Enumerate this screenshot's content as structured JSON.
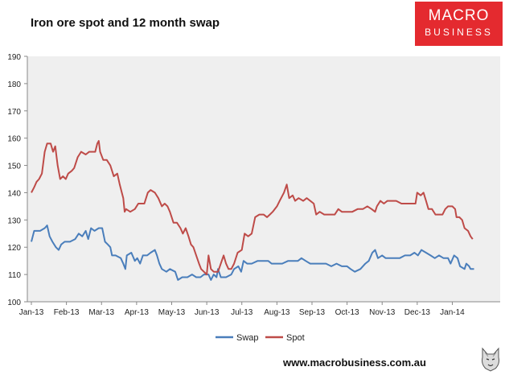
{
  "header": {
    "title": "Iron ore spot and 12 month swap",
    "logo_line1": "MACRO",
    "logo_line2": "BUSINESS"
  },
  "footer": {
    "url": "www.macrobusiness.com.au"
  },
  "colors": {
    "plot_background": "#efefef",
    "swap": "#4a7ebb",
    "spot": "#be4b48",
    "brand_red": "#e42a2f"
  },
  "icons": [
    "wolf-logo-icon"
  ],
  "chart_data": {
    "type": "line",
    "title": "Iron ore spot and 12 month swap",
    "xlabel": "",
    "ylabel": "",
    "ylim": [
      100,
      190
    ],
    "yticks": [
      100,
      110,
      120,
      130,
      140,
      150,
      160,
      170,
      180,
      190
    ],
    "xlim": [
      0,
      13.25
    ],
    "x_tick_positions": [
      0,
      1,
      2,
      3,
      4,
      5,
      6,
      7,
      8,
      9,
      10,
      11,
      12
    ],
    "x_tick_labels": [
      "Jan-13",
      "Feb-13",
      "Mar-13",
      "Apr-13",
      "May-13",
      "Jun-13",
      "Jul-13",
      "Aug-13",
      "Sep-13",
      "Oct-13",
      "Nov-13",
      "Dec-13",
      "Jan-14"
    ],
    "grid": false,
    "legend_position": "bottom",
    "series": [
      {
        "name": "Swap",
        "color": "#4a7ebb",
        "points": [
          [
            0.0,
            122
          ],
          [
            0.08,
            126
          ],
          [
            0.25,
            126
          ],
          [
            0.38,
            127
          ],
          [
            0.45,
            128
          ],
          [
            0.52,
            124
          ],
          [
            0.6,
            122
          ],
          [
            0.7,
            120
          ],
          [
            0.78,
            119
          ],
          [
            0.85,
            121
          ],
          [
            0.95,
            122
          ],
          [
            1.1,
            122
          ],
          [
            1.25,
            123
          ],
          [
            1.35,
            125
          ],
          [
            1.45,
            124
          ],
          [
            1.55,
            126
          ],
          [
            1.62,
            123
          ],
          [
            1.7,
            127
          ],
          [
            1.8,
            126
          ],
          [
            1.92,
            127
          ],
          [
            2.02,
            127
          ],
          [
            2.1,
            122
          ],
          [
            2.18,
            121
          ],
          [
            2.25,
            120
          ],
          [
            2.3,
            117
          ],
          [
            2.4,
            117
          ],
          [
            2.55,
            116
          ],
          [
            2.62,
            114
          ],
          [
            2.68,
            112
          ],
          [
            2.72,
            117
          ],
          [
            2.85,
            118
          ],
          [
            2.95,
            115
          ],
          [
            3.02,
            116
          ],
          [
            3.1,
            114
          ],
          [
            3.18,
            117
          ],
          [
            3.3,
            117
          ],
          [
            3.4,
            118
          ],
          [
            3.52,
            119
          ],
          [
            3.58,
            117
          ],
          [
            3.65,
            114
          ],
          [
            3.72,
            112
          ],
          [
            3.85,
            111
          ],
          [
            3.95,
            112
          ],
          [
            4.1,
            111
          ],
          [
            4.18,
            108
          ],
          [
            4.3,
            109
          ],
          [
            4.45,
            109
          ],
          [
            4.58,
            110
          ],
          [
            4.7,
            109
          ],
          [
            4.82,
            109
          ],
          [
            4.92,
            110
          ],
          [
            5.05,
            110
          ],
          [
            5.12,
            108
          ],
          [
            5.2,
            110
          ],
          [
            5.28,
            109
          ],
          [
            5.32,
            112
          ],
          [
            5.4,
            109
          ],
          [
            5.55,
            109
          ],
          [
            5.7,
            110
          ],
          [
            5.78,
            112
          ],
          [
            5.9,
            113
          ],
          [
            5.98,
            111
          ],
          [
            6.05,
            115
          ],
          [
            6.15,
            114
          ],
          [
            6.28,
            114
          ],
          [
            6.45,
            115
          ],
          [
            6.62,
            115
          ],
          [
            6.75,
            115
          ],
          [
            6.85,
            114
          ],
          [
            7.0,
            114
          ],
          [
            7.15,
            114
          ],
          [
            7.32,
            115
          ],
          [
            7.45,
            115
          ],
          [
            7.6,
            115
          ],
          [
            7.7,
            116
          ],
          [
            7.82,
            115
          ],
          [
            7.95,
            114
          ],
          [
            8.1,
            114
          ],
          [
            8.25,
            114
          ],
          [
            8.4,
            114
          ],
          [
            8.55,
            113
          ],
          [
            8.7,
            114
          ],
          [
            8.85,
            113
          ],
          [
            9.0,
            113
          ],
          [
            9.1,
            112
          ],
          [
            9.22,
            111
          ],
          [
            9.38,
            112
          ],
          [
            9.52,
            114
          ],
          [
            9.62,
            115
          ],
          [
            9.72,
            118
          ],
          [
            9.8,
            119
          ],
          [
            9.88,
            116
          ],
          [
            10.0,
            117
          ],
          [
            10.1,
            116
          ],
          [
            10.2,
            116
          ],
          [
            10.35,
            116
          ],
          [
            10.5,
            116
          ],
          [
            10.65,
            117
          ],
          [
            10.8,
            117
          ],
          [
            10.92,
            118
          ],
          [
            11.02,
            117
          ],
          [
            11.12,
            119
          ],
          [
            11.25,
            118
          ],
          [
            11.38,
            117
          ],
          [
            11.5,
            116
          ],
          [
            11.62,
            117
          ],
          [
            11.75,
            116
          ],
          [
            11.88,
            116
          ],
          [
            11.95,
            114
          ],
          [
            12.05,
            117
          ],
          [
            12.15,
            116
          ],
          [
            12.22,
            113
          ],
          [
            12.35,
            112
          ],
          [
            12.4,
            114
          ],
          [
            12.48,
            113
          ],
          [
            12.52,
            112
          ],
          [
            12.62,
            112
          ]
        ]
      },
      {
        "name": "Spot",
        "color": "#be4b48",
        "points": [
          [
            0.0,
            140
          ],
          [
            0.08,
            142
          ],
          [
            0.15,
            144
          ],
          [
            0.22,
            145
          ],
          [
            0.3,
            147
          ],
          [
            0.38,
            155
          ],
          [
            0.45,
            158
          ],
          [
            0.55,
            158
          ],
          [
            0.62,
            155
          ],
          [
            0.68,
            157
          ],
          [
            0.75,
            150
          ],
          [
            0.82,
            145
          ],
          [
            0.9,
            146
          ],
          [
            0.98,
            145
          ],
          [
            1.05,
            147
          ],
          [
            1.15,
            148
          ],
          [
            1.22,
            149
          ],
          [
            1.32,
            153
          ],
          [
            1.42,
            155
          ],
          [
            1.55,
            154
          ],
          [
            1.65,
            155
          ],
          [
            1.75,
            155
          ],
          [
            1.82,
            155
          ],
          [
            1.88,
            158
          ],
          [
            1.92,
            159
          ],
          [
            1.96,
            155
          ],
          [
            2.05,
            152
          ],
          [
            2.15,
            152
          ],
          [
            2.25,
            150
          ],
          [
            2.35,
            146
          ],
          [
            2.45,
            147
          ],
          [
            2.52,
            143
          ],
          [
            2.58,
            140
          ],
          [
            2.62,
            138
          ],
          [
            2.66,
            133
          ],
          [
            2.7,
            134
          ],
          [
            2.82,
            133
          ],
          [
            2.95,
            134
          ],
          [
            3.05,
            136
          ],
          [
            3.12,
            136
          ],
          [
            3.22,
            136
          ],
          [
            3.32,
            140
          ],
          [
            3.4,
            141
          ],
          [
            3.52,
            140
          ],
          [
            3.62,
            138
          ],
          [
            3.72,
            135
          ],
          [
            3.8,
            136
          ],
          [
            3.88,
            135
          ],
          [
            3.95,
            133
          ],
          [
            4.05,
            129
          ],
          [
            4.15,
            129
          ],
          [
            4.25,
            127
          ],
          [
            4.32,
            125
          ],
          [
            4.4,
            127
          ],
          [
            4.48,
            124
          ],
          [
            4.55,
            121
          ],
          [
            4.62,
            120
          ],
          [
            4.7,
            117
          ],
          [
            4.78,
            114
          ],
          [
            4.84,
            112
          ],
          [
            4.92,
            111
          ],
          [
            5.0,
            110
          ],
          [
            5.05,
            117
          ],
          [
            5.12,
            112
          ],
          [
            5.2,
            111
          ],
          [
            5.32,
            111
          ],
          [
            5.4,
            114
          ],
          [
            5.48,
            117
          ],
          [
            5.55,
            114
          ],
          [
            5.62,
            112
          ],
          [
            5.7,
            112
          ],
          [
            5.78,
            114
          ],
          [
            5.88,
            118
          ],
          [
            6.0,
            119
          ],
          [
            6.08,
            125
          ],
          [
            6.18,
            124
          ],
          [
            6.28,
            125
          ],
          [
            6.38,
            131
          ],
          [
            6.5,
            132
          ],
          [
            6.62,
            132
          ],
          [
            6.72,
            131
          ],
          [
            6.8,
            132
          ],
          [
            6.88,
            133
          ],
          [
            7.0,
            135
          ],
          [
            7.08,
            137
          ],
          [
            7.2,
            140
          ],
          [
            7.28,
            143
          ],
          [
            7.35,
            138
          ],
          [
            7.45,
            139
          ],
          [
            7.52,
            137
          ],
          [
            7.62,
            138
          ],
          [
            7.75,
            137
          ],
          [
            7.85,
            138
          ],
          [
            7.95,
            137
          ],
          [
            8.05,
            136
          ],
          [
            8.12,
            132
          ],
          [
            8.22,
            133
          ],
          [
            8.35,
            132
          ],
          [
            8.5,
            132
          ],
          [
            8.65,
            132
          ],
          [
            8.75,
            134
          ],
          [
            8.85,
            133
          ],
          [
            9.0,
            133
          ],
          [
            9.15,
            133
          ],
          [
            9.3,
            134
          ],
          [
            9.45,
            134
          ],
          [
            9.58,
            135
          ],
          [
            9.7,
            134
          ],
          [
            9.8,
            133
          ],
          [
            9.85,
            135
          ],
          [
            9.95,
            137
          ],
          [
            10.05,
            136
          ],
          [
            10.15,
            137
          ],
          [
            10.25,
            137
          ],
          [
            10.4,
            137
          ],
          [
            10.55,
            136
          ],
          [
            10.7,
            136
          ],
          [
            10.82,
            136
          ],
          [
            10.95,
            136
          ],
          [
            11.0,
            140
          ],
          [
            11.1,
            139
          ],
          [
            11.18,
            140
          ],
          [
            11.25,
            137
          ],
          [
            11.32,
            134
          ],
          [
            11.42,
            134
          ],
          [
            11.52,
            132
          ],
          [
            11.62,
            132
          ],
          [
            11.72,
            132
          ],
          [
            11.8,
            134
          ],
          [
            11.88,
            135
          ],
          [
            11.95,
            135
          ],
          [
            12.0,
            135
          ],
          [
            12.08,
            134
          ],
          [
            12.12,
            131
          ],
          [
            12.2,
            131
          ],
          [
            12.28,
            130
          ],
          [
            12.35,
            127
          ],
          [
            12.45,
            126
          ],
          [
            12.52,
            124
          ],
          [
            12.58,
            123
          ]
        ]
      }
    ]
  }
}
